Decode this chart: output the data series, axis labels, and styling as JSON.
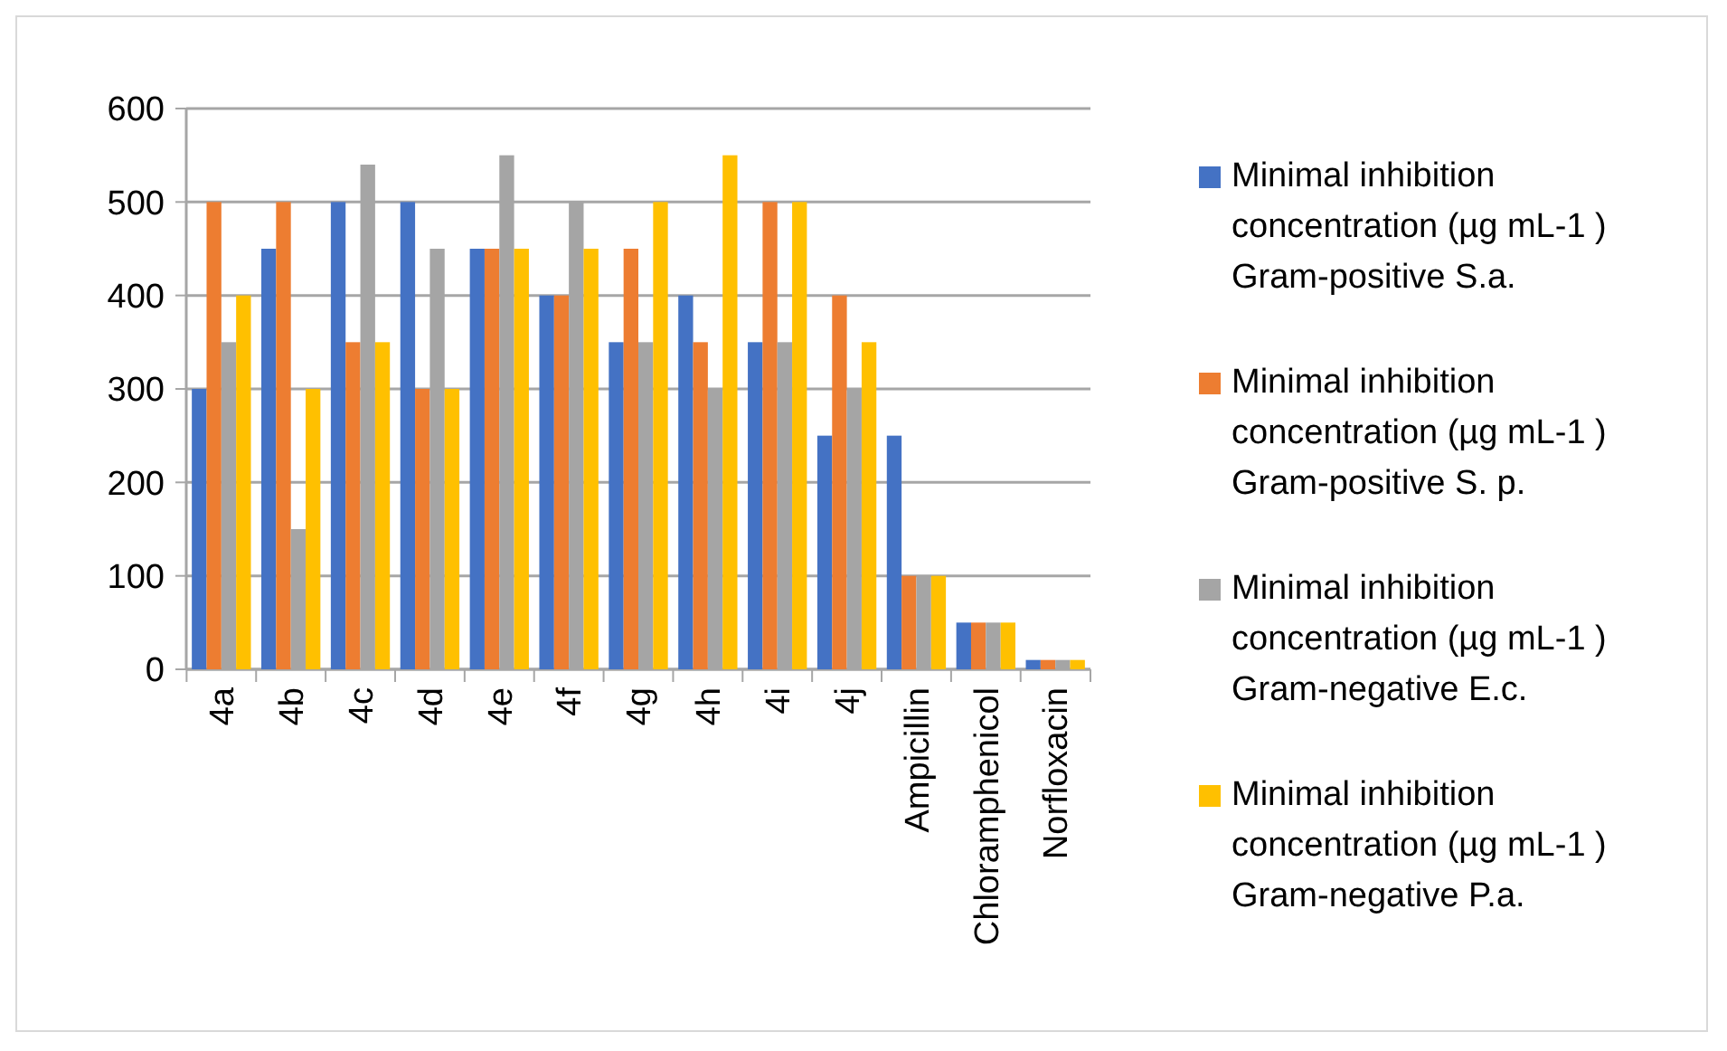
{
  "chart_data": {
    "type": "bar",
    "categories": [
      "4a",
      "4b",
      "4c",
      "4d",
      "4e",
      "4f",
      "4g",
      "4h",
      "4i",
      "4j",
      "Ampicillin",
      "Chloramphenicol",
      "Norfloxacin"
    ],
    "series": [
      {
        "name": "Minimal inhibition concentration (µg mL-1 ) Gram-positive S.a.",
        "color": "#4472c4",
        "values": [
          300,
          450,
          500,
          500,
          450,
          400,
          350,
          400,
          350,
          250,
          250,
          50,
          10
        ]
      },
      {
        "name": "Minimal inhibition concentration (µg mL-1 ) Gram-positive S. p.",
        "color": "#ed7d31",
        "values": [
          500,
          500,
          350,
          300,
          450,
          400,
          450,
          350,
          500,
          400,
          100,
          50,
          10
        ]
      },
      {
        "name": "Minimal inhibition concentration (µg mL-1 ) Gram-negative E.c.",
        "color": "#a5a5a5",
        "values": [
          350,
          150,
          540,
          450,
          550,
          500,
          350,
          300,
          350,
          300,
          100,
          50,
          10
        ]
      },
      {
        "name": "Minimal inhibition concentration (µg mL-1 ) Gram-negative P.a.",
        "color": "#ffc000",
        "values": [
          400,
          300,
          350,
          300,
          450,
          450,
          500,
          550,
          500,
          350,
          100,
          50,
          10
        ]
      }
    ],
    "ylim": [
      0,
      600
    ],
    "yticks": [
      0,
      100,
      200,
      300,
      400,
      500,
      600
    ],
    "grid": "y",
    "legend": "right"
  }
}
